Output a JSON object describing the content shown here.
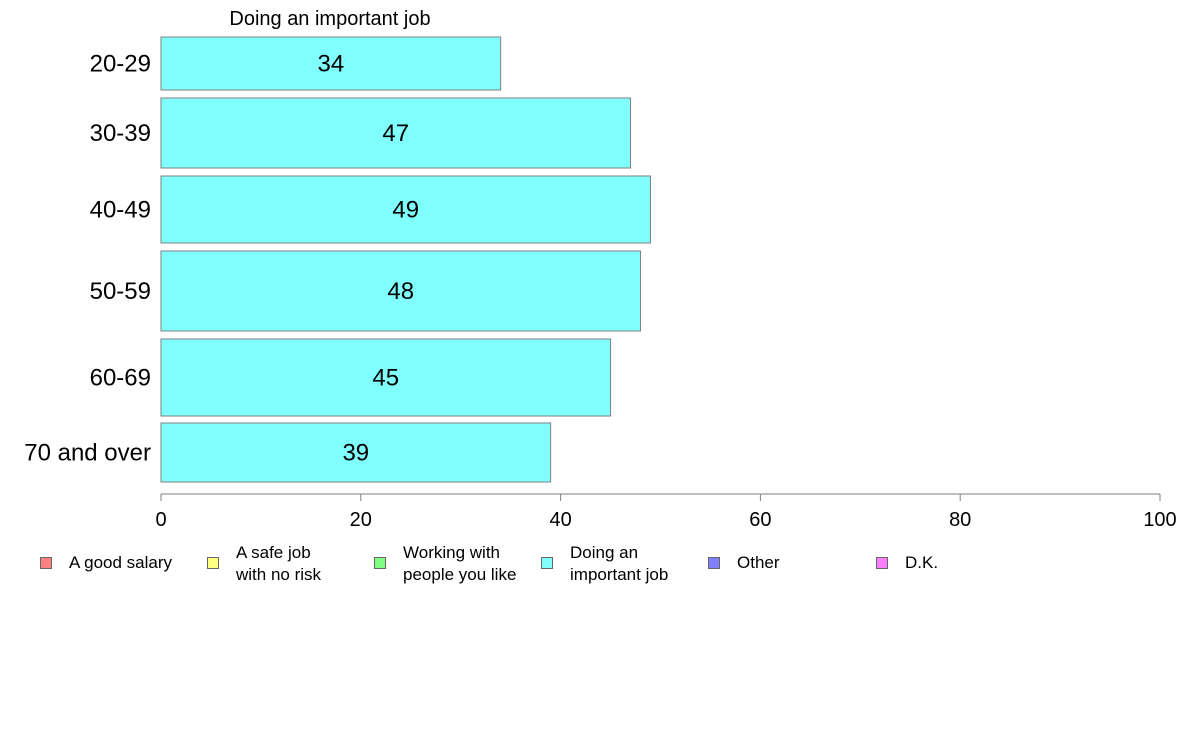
{
  "chart_data": {
    "type": "bar",
    "orientation": "horizontal",
    "title": "Doing an important job",
    "categories": [
      "20-29",
      "30-39",
      "40-49",
      "50-59",
      "60-69",
      "70 and over"
    ],
    "series": [
      {
        "name": "Doing an important job",
        "values": [
          34,
          47,
          49,
          48,
          45,
          39
        ],
        "color": "#80FFFF"
      }
    ],
    "data_labels": [
      "34",
      "47",
      "49",
      "48",
      "45",
      "39"
    ],
    "xlim": [
      0,
      100
    ],
    "xticks": [
      0,
      20,
      40,
      60,
      80,
      100
    ],
    "xtick_labels": [
      "0",
      "20",
      "40",
      "60",
      "80",
      "100"
    ],
    "grid": false,
    "legend_position": "bottom"
  },
  "legend": {
    "items": [
      {
        "label": "A good salary",
        "color": "#FF8080"
      },
      {
        "label": "A safe job\nwith no risk",
        "color": "#FFFF80"
      },
      {
        "label": "Working with\npeople you like",
        "color": "#80FF80"
      },
      {
        "label": "Doing an\nimportant job",
        "color": "#80FFFF"
      },
      {
        "label": "Other",
        "color": "#8080FF"
      },
      {
        "label": "D.K.",
        "color": "#FF80FF"
      }
    ]
  }
}
